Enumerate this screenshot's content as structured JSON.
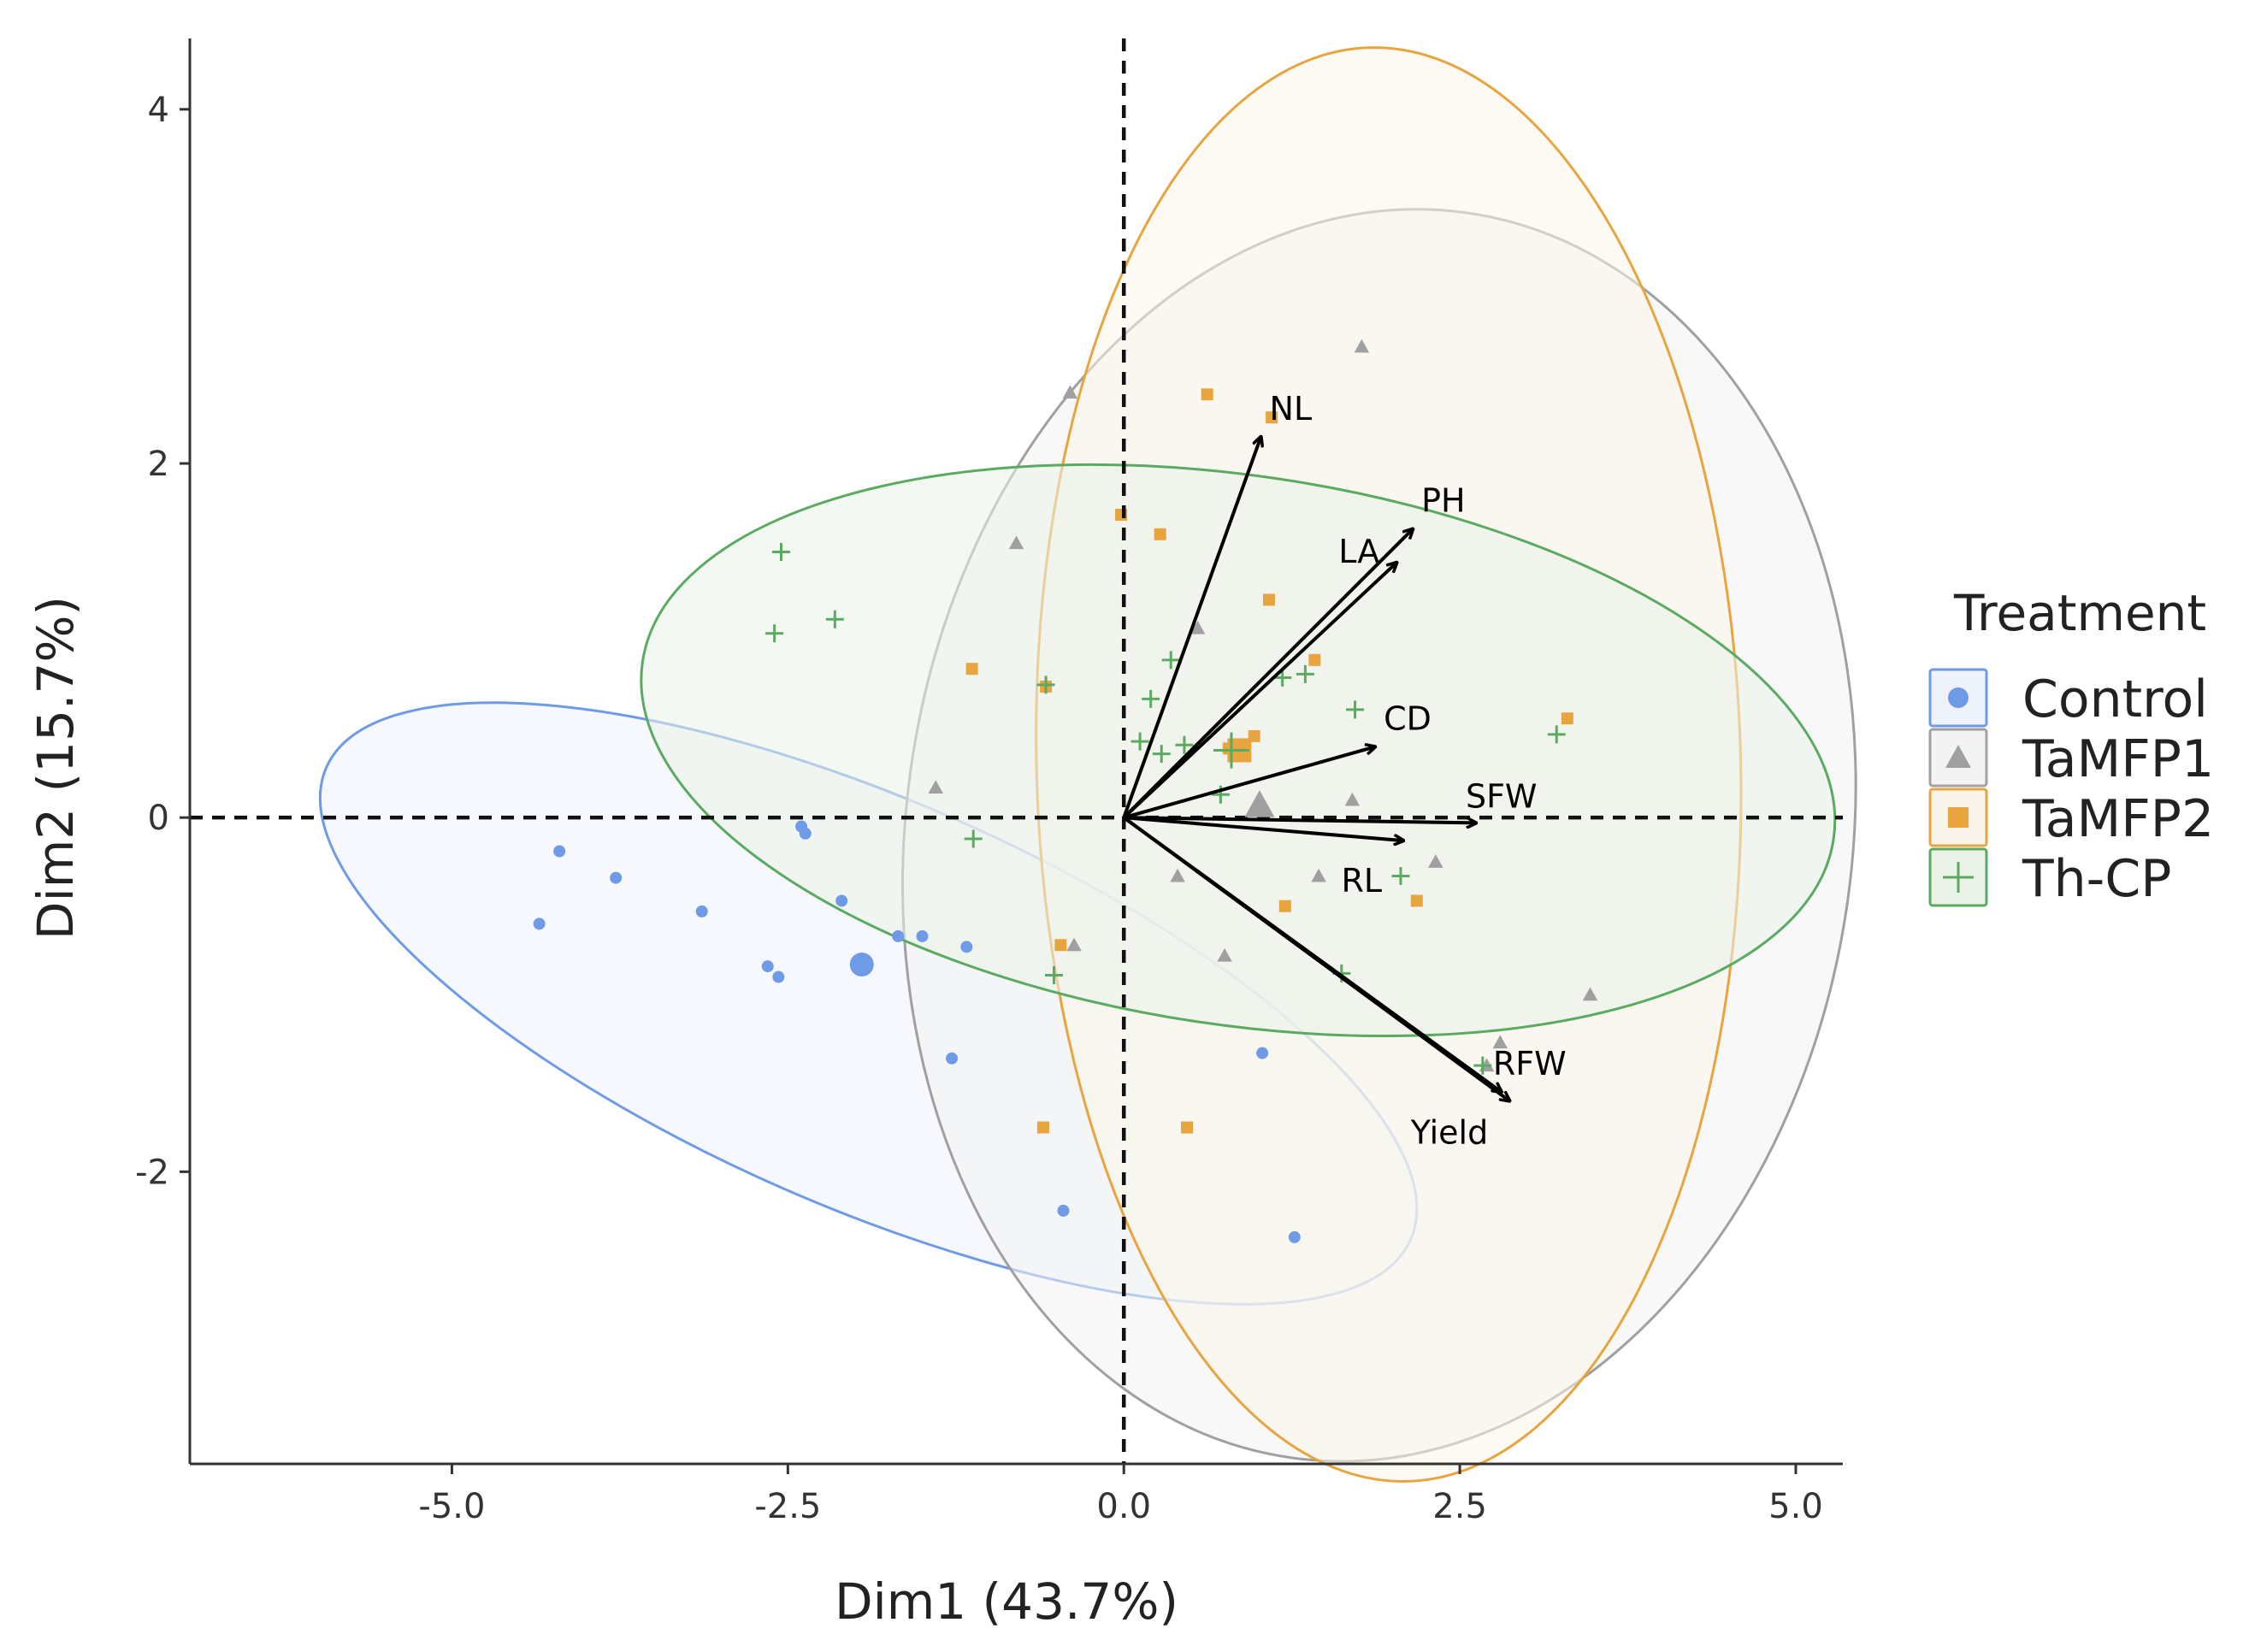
{
  "chart_data": {
    "type": "scatter",
    "subtype": "pca-biplot",
    "xlabel": "Dim1 (43.7%)",
    "ylabel": "Dim2 (15.7%)",
    "xlim": [
      -6.95,
      5.35
    ],
    "ylim": [
      -3.65,
      4.4
    ],
    "xticks": [
      -5.0,
      -2.5,
      0.0,
      2.5,
      5.0
    ],
    "xtick_labels": [
      "-5.0",
      "-2.5",
      "0.0",
      "2.5",
      "5.0"
    ],
    "yticks": [
      -2,
      0,
      2,
      4
    ],
    "ytick_labels": [
      "-2",
      "0",
      "2",
      "4"
    ],
    "grid": false,
    "reference_lines": {
      "x": 0,
      "y": 0
    },
    "legend": {
      "title": "Treatment",
      "placement": "right",
      "entries": [
        "Control",
        "TaMFP1",
        "TaMFP2",
        "Th-CP"
      ]
    },
    "series": [
      {
        "name": "Control",
        "marker": "circle",
        "color": "#6f9be6",
        "fill": "#eef3fb",
        "ellipse": {
          "cx": -1.9,
          "cy": -1.05,
          "rx": 4.4,
          "ry": 1.15,
          "angle_deg": -23.5
        },
        "centroid": [
          -1.95,
          -0.83
        ],
        "points": [
          [
            -4.2,
            -0.19
          ],
          [
            -3.78,
            -0.34
          ],
          [
            -4.35,
            -0.6
          ],
          [
            -3.14,
            -0.53
          ],
          [
            -2.65,
            -0.84
          ],
          [
            -2.57,
            -0.9
          ],
          [
            -2.4,
            -0.05
          ],
          [
            -2.37,
            -0.09
          ],
          [
            -2.1,
            -0.47
          ],
          [
            -1.68,
            -0.67
          ],
          [
            -1.5,
            -0.67
          ],
          [
            -1.17,
            -0.73
          ],
          [
            -1.28,
            -1.36
          ],
          [
            -0.45,
            -2.22
          ],
          [
            1.03,
            -1.33
          ],
          [
            1.27,
            -2.37
          ]
        ]
      },
      {
        "name": "TaMFP1",
        "marker": "triangle",
        "color": "#a0a0a0",
        "fill": "#f3f3f3",
        "ellipse": {
          "cx": 1.9,
          "cy": -0.1,
          "rx": 3.52,
          "ry": 3.55,
          "angle_deg": -8
        },
        "centroid": [
          1.01,
          0.07
        ],
        "points": [
          [
            -0.4,
            2.4
          ],
          [
            1.77,
            2.66
          ],
          [
            -0.8,
            1.55
          ],
          [
            0.55,
            1.07
          ],
          [
            -1.4,
            0.17
          ],
          [
            1.7,
            0.1
          ],
          [
            1.45,
            -0.33
          ],
          [
            2.32,
            -0.25
          ],
          [
            0.4,
            -0.33
          ],
          [
            0.75,
            -0.78
          ],
          [
            -0.37,
            -0.72
          ],
          [
            3.47,
            -1.0
          ],
          [
            2.8,
            -1.27
          ],
          [
            2.7,
            -1.4
          ]
        ]
      },
      {
        "name": "TaMFP2",
        "marker": "square",
        "color": "#e8a53f",
        "fill": "#faf5ea",
        "ellipse": {
          "cx": 1.97,
          "cy": 0.3,
          "rx": 2.62,
          "ry": 4.05,
          "angle_deg": 1.5
        },
        "centroid": [
          0.86,
          0.38
        ],
        "points": [
          [
            0.62,
            2.39
          ],
          [
            1.1,
            2.26
          ],
          [
            -0.02,
            1.71
          ],
          [
            0.27,
            1.6
          ],
          [
            1.08,
            1.23
          ],
          [
            1.42,
            0.89
          ],
          [
            -1.13,
            0.84
          ],
          [
            -0.58,
            0.74
          ],
          [
            3.3,
            0.56
          ],
          [
            0.97,
            0.46
          ],
          [
            0.78,
            0.39
          ],
          [
            0.85,
            0.35
          ],
          [
            1.2,
            -0.5
          ],
          [
            2.18,
            -0.47
          ],
          [
            -0.47,
            -0.72
          ],
          [
            -0.6,
            -1.75
          ],
          [
            0.47,
            -1.75
          ]
        ]
      },
      {
        "name": "Th-CP",
        "marker": "plus",
        "color": "#5aab61",
        "fill": "#ebf3e9",
        "ellipse": {
          "cx": 0.85,
          "cy": 0.38,
          "rx": 4.48,
          "ry": 1.55,
          "angle_deg": -8.5
        },
        "centroid": [
          0.8,
          0.38
        ],
        "points": [
          [
            -2.55,
            1.5
          ],
          [
            -2.6,
            1.04
          ],
          [
            -2.15,
            1.12
          ],
          [
            -0.58,
            0.75
          ],
          [
            0.35,
            0.89
          ],
          [
            0.2,
            0.67
          ],
          [
            0.12,
            0.43
          ],
          [
            0.28,
            0.36
          ],
          [
            0.45,
            0.41
          ],
          [
            0.72,
            0.13
          ],
          [
            1.18,
            0.79
          ],
          [
            1.35,
            0.81
          ],
          [
            1.72,
            0.61
          ],
          [
            3.22,
            0.47
          ],
          [
            -1.12,
            -0.12
          ],
          [
            2.06,
            -0.33
          ],
          [
            -0.52,
            -0.89
          ],
          [
            1.62,
            -0.88
          ],
          [
            2.67,
            -1.4
          ]
        ]
      }
    ],
    "vectors": [
      {
        "name": "NL",
        "x": 1.02,
        "y": 2.15
      },
      {
        "name": "PH",
        "x": 2.15,
        "y": 1.63
      },
      {
        "name": "LA",
        "x": 2.03,
        "y": 1.44
      },
      {
        "name": "CD",
        "x": 1.87,
        "y": 0.4
      },
      {
        "name": "SFW",
        "x": 2.62,
        "y": -0.03
      },
      {
        "name": "RL",
        "x": 2.08,
        "y": -0.13
      },
      {
        "name": "RFW",
        "x": 2.81,
        "y": -1.55
      },
      {
        "name": "Yield",
        "x": 2.87,
        "y": -1.6
      }
    ]
  }
}
